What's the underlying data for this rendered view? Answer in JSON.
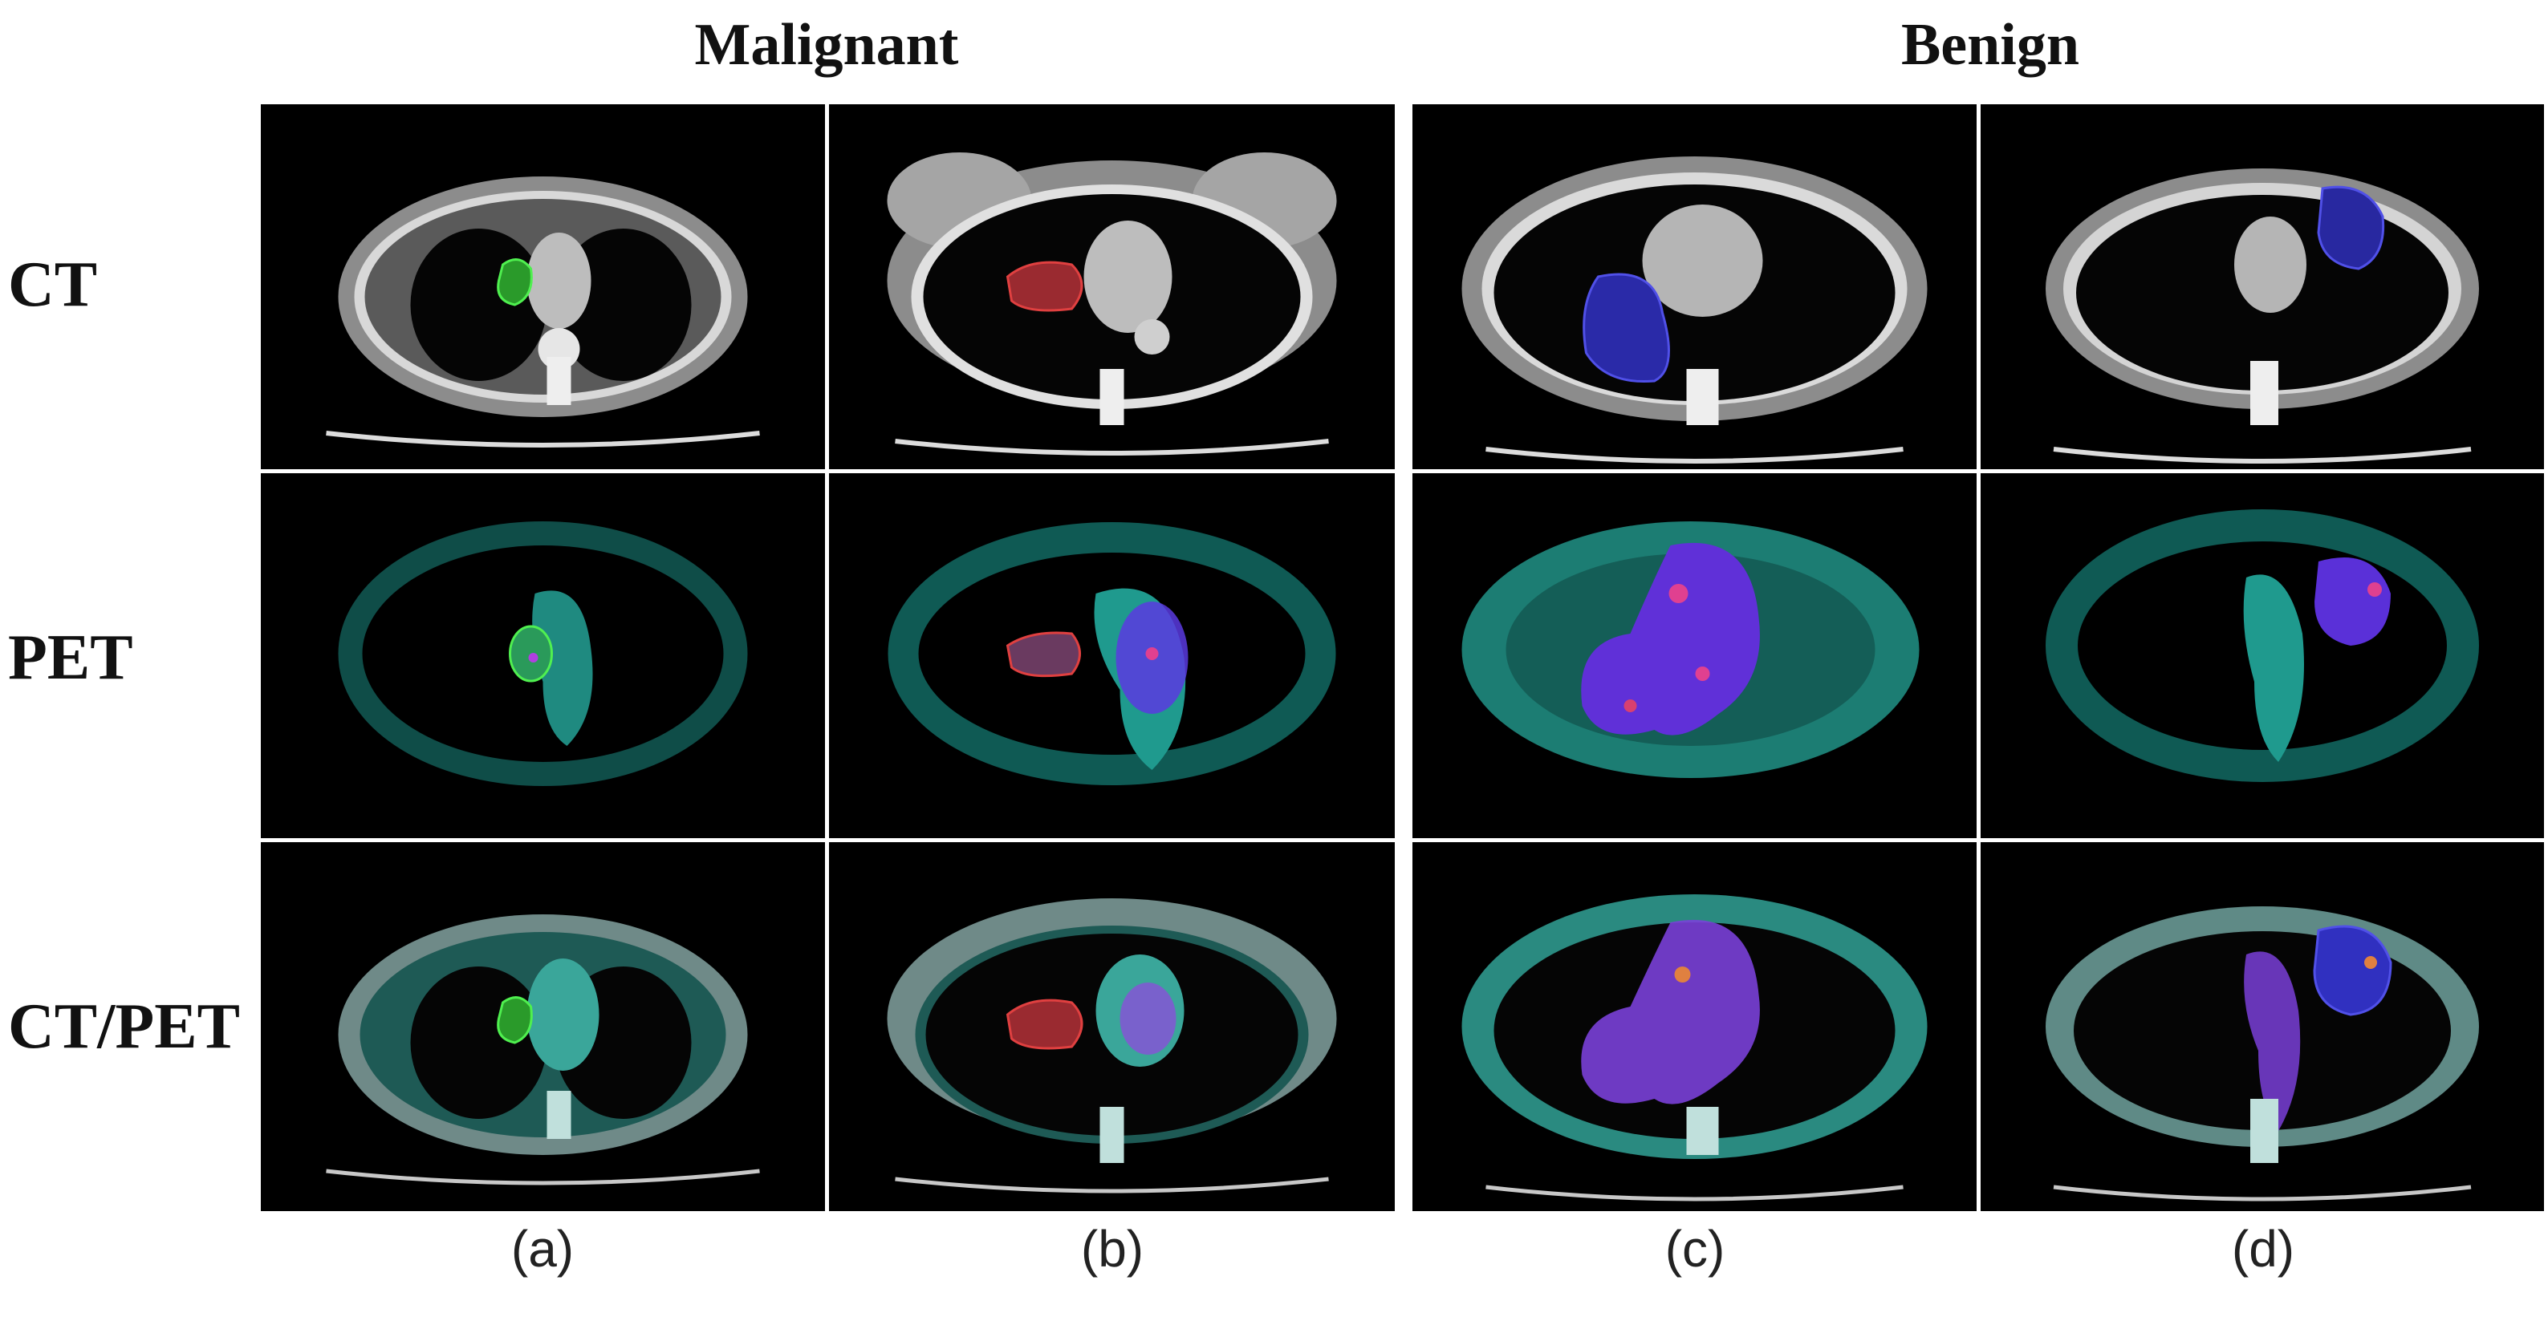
{
  "groups": {
    "malignant": "Malignant",
    "benign": "Benign"
  },
  "rows": {
    "ct": "CT",
    "pet": "PET",
    "ctpet": "CT/PET"
  },
  "columns": {
    "a": "(a)",
    "b": "(b)",
    "c": "(c)",
    "d": "(d)"
  },
  "colors": {
    "panel_background": "#000000",
    "ct_tissue": "#9a9a9a",
    "pet_uptake": "#2fb5a8",
    "malignant_a_contour": "#2fd02f",
    "malignant_b_contour": "#d0303a",
    "benign_contour": "#3a3ae0",
    "hot_uptake": "#b040e0"
  }
}
